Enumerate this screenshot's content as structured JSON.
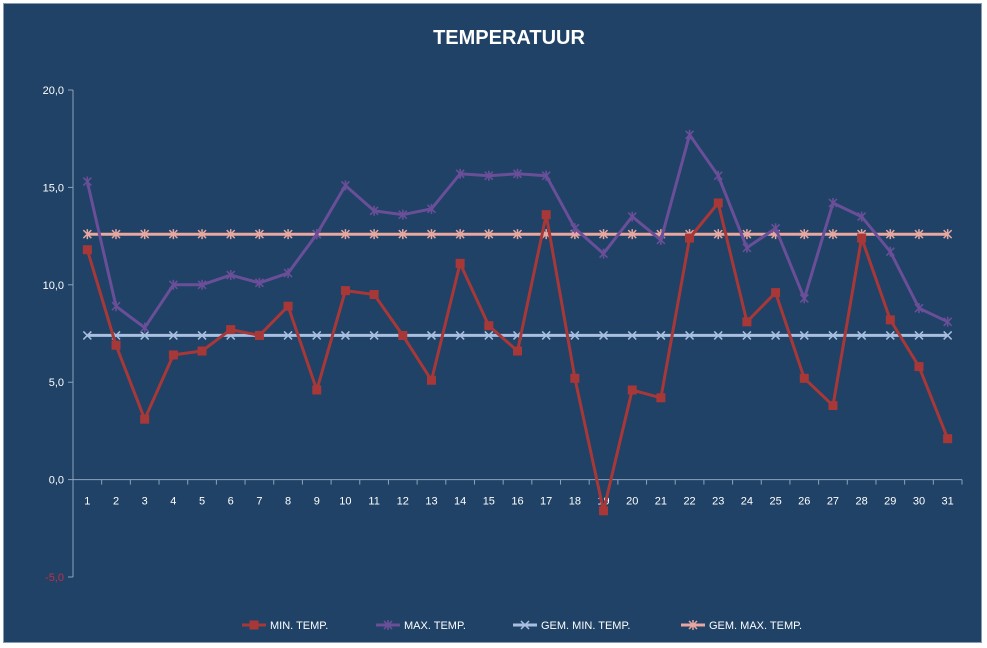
{
  "chart_data": {
    "type": "line",
    "title": "TEMPERATUUR",
    "xlabel": "",
    "ylabel": "",
    "ylim": [
      -5,
      20
    ],
    "yticks": [
      "-5,0",
      "0,0",
      "5,0",
      "10,0",
      "15,0",
      "20,0"
    ],
    "ytick_values": [
      -5,
      0,
      5,
      10,
      15,
      20
    ],
    "categories": [
      "1",
      "2",
      "3",
      "4",
      "5",
      "6",
      "7",
      "8",
      "9",
      "10",
      "11",
      "12",
      "13",
      "14",
      "15",
      "16",
      "17",
      "18",
      "19",
      "20",
      "21",
      "22",
      "23",
      "24",
      "25",
      "26",
      "27",
      "28",
      "29",
      "30",
      "31"
    ],
    "legend_position": "bottom",
    "grid": false,
    "series": [
      {
        "name": "MIN. TEMP.",
        "color": "#a83838",
        "marker": "square",
        "values": [
          11.8,
          6.9,
          3.1,
          6.4,
          6.6,
          7.7,
          7.4,
          8.9,
          4.6,
          9.7,
          9.5,
          7.4,
          5.1,
          11.1,
          7.9,
          6.6,
          13.6,
          5.2,
          -1.6,
          4.6,
          4.2,
          12.4,
          14.2,
          8.1,
          9.6,
          5.2,
          3.8,
          12.4,
          8.2,
          5.8,
          2.1
        ]
      },
      {
        "name": "MAX. TEMP.",
        "color": "#6a4f98",
        "marker": "star",
        "values": [
          15.3,
          8.9,
          7.8,
          10.0,
          10.0,
          10.5,
          10.1,
          10.6,
          12.6,
          15.1,
          13.8,
          13.6,
          13.9,
          15.7,
          15.6,
          15.7,
          15.6,
          12.9,
          11.6,
          13.5,
          12.3,
          17.7,
          15.6,
          11.9,
          12.9,
          9.3,
          14.2,
          13.5,
          11.7,
          8.8,
          8.1
        ]
      },
      {
        "name": "GEM. MIN. TEMP.",
        "color": "#a9bfe0",
        "marker": "x",
        "values": [
          7.4,
          7.4,
          7.4,
          7.4,
          7.4,
          7.4,
          7.4,
          7.4,
          7.4,
          7.4,
          7.4,
          7.4,
          7.4,
          7.4,
          7.4,
          7.4,
          7.4,
          7.4,
          7.4,
          7.4,
          7.4,
          7.4,
          7.4,
          7.4,
          7.4,
          7.4,
          7.4,
          7.4,
          7.4,
          7.4,
          7.4
        ]
      },
      {
        "name": "GEM. MAX. TEMP.",
        "color": "#e8a7a0",
        "marker": "asterisk",
        "values": [
          12.6,
          12.6,
          12.6,
          12.6,
          12.6,
          12.6,
          12.6,
          12.6,
          12.6,
          12.6,
          12.6,
          12.6,
          12.6,
          12.6,
          12.6,
          12.6,
          12.6,
          12.6,
          12.6,
          12.6,
          12.6,
          12.6,
          12.6,
          12.6,
          12.6,
          12.6,
          12.6,
          12.6,
          12.6,
          12.6,
          12.6
        ]
      }
    ]
  },
  "colors": {
    "background": "#1f4266",
    "axis": "#8fa3ba",
    "negative_tick": "#c0304a"
  }
}
